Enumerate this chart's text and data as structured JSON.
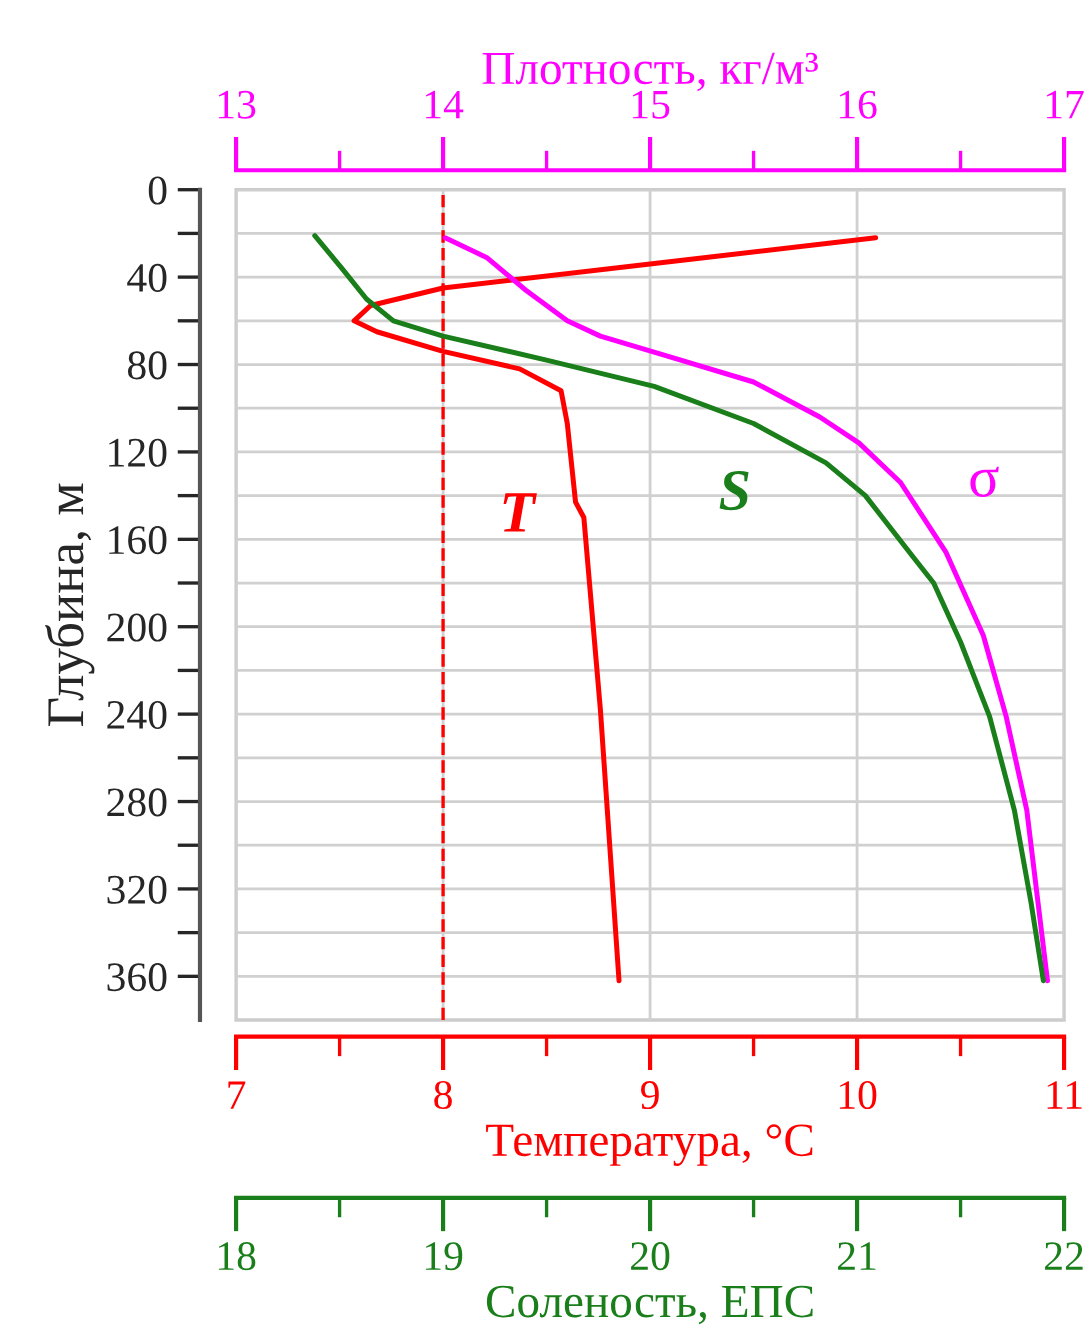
{
  "chart_data": [
    {
      "type": "line",
      "xlabel": "Температура, °C",
      "x2label": "Плотность, кг/м³",
      "ylabel": "Глубина, м",
      "xlim": [
        7,
        11
      ],
      "xticks": [
        7,
        {
          "value": 7.5,
          "label": null
        },
        8,
        {
          "value": 8.5,
          "label": null
        },
        9,
        {
          "value": 9.5,
          "label": null
        },
        10,
        {
          "value": 10.5,
          "label": null
        },
        11
      ],
      "x2lim": [
        13,
        17
      ],
      "x2ticks": [
        13,
        {
          "value": 13.5,
          "label": null
        },
        14,
        {
          "value": 14.5,
          "label": null
        },
        15,
        {
          "value": 15.5,
          "label": null
        },
        16,
        {
          "value": 16.5,
          "label": null
        },
        17
      ],
      "ylim": [
        380,
        0
      ],
      "yticks": [
        0,
        {
          "value": 20,
          "label": null
        },
        40,
        {
          "value": 60,
          "label": null
        },
        80,
        {
          "value": 100,
          "label": null
        },
        120,
        {
          "value": 140,
          "label": null
        },
        160,
        {
          "value": 180,
          "label": null
        },
        200,
        {
          "value": 220,
          "label": null
        },
        240,
        {
          "value": 260,
          "label": null
        },
        280,
        {
          "value": 300,
          "label": null
        },
        320,
        {
          "value": 340,
          "label": null
        },
        360
      ],
      "grid": true,
      "line_style": "solid",
      "marker": "none",
      "ref_lines": [
        {
          "axis": "x",
          "value": 8,
          "color": "#ff0000",
          "line_style": "dashed"
        }
      ],
      "series": [
        {
          "name": "T",
          "color": "#ff0000",
          "x": [
            10.09,
            9.27,
            8.0,
            7.65,
            7.57,
            7.68,
            8.0,
            8.37,
            8.57,
            8.6,
            8.64,
            8.68,
            8.76,
            8.85
          ],
          "values": [
            22,
            31,
            45,
            53,
            60,
            65,
            74,
            82,
            92,
            107,
            143,
            150,
            238,
            362
          ]
        },
        {
          "name": "σ",
          "axis": "x2",
          "color": "#ff00ff",
          "x": [
            14.01,
            14.21,
            14.4,
            14.6,
            14.76,
            15.08,
            15.5,
            15.82,
            16.01,
            16.21,
            16.43,
            16.61,
            16.72,
            16.82,
            16.92
          ],
          "values": [
            22,
            31,
            46,
            60,
            67,
            76,
            88,
            104,
            116,
            134,
            166,
            204,
            241,
            284,
            362
          ]
        }
      ]
    },
    {
      "type": "line",
      "xlabel": "Соленость, ЕПС",
      "xlim": [
        18,
        22
      ],
      "xticks": [
        18,
        {
          "value": 18.5,
          "label": null
        },
        19,
        {
          "value": 19.5,
          "label": null
        },
        20,
        {
          "value": 20.5,
          "label": null
        },
        21,
        {
          "value": 21.5,
          "label": null
        },
        22
      ],
      "ylim": [
        380,
        0
      ],
      "tick_labels": "x",
      "line_style": "solid",
      "marker": "none",
      "series": [
        {
          "name": "S",
          "color": "#1a7f1a",
          "x": [
            18.38,
            18.52,
            18.63,
            18.76,
            19.0,
            19.5,
            20.02,
            20.5,
            20.85,
            21.04,
            21.27,
            21.37,
            21.5,
            21.64,
            21.76,
            21.84,
            21.9
          ],
          "values": [
            21,
            37,
            50,
            60,
            67,
            78,
            90,
            107,
            125,
            140,
            168,
            180,
            207,
            241,
            284,
            326,
            362
          ]
        }
      ]
    }
  ]
}
